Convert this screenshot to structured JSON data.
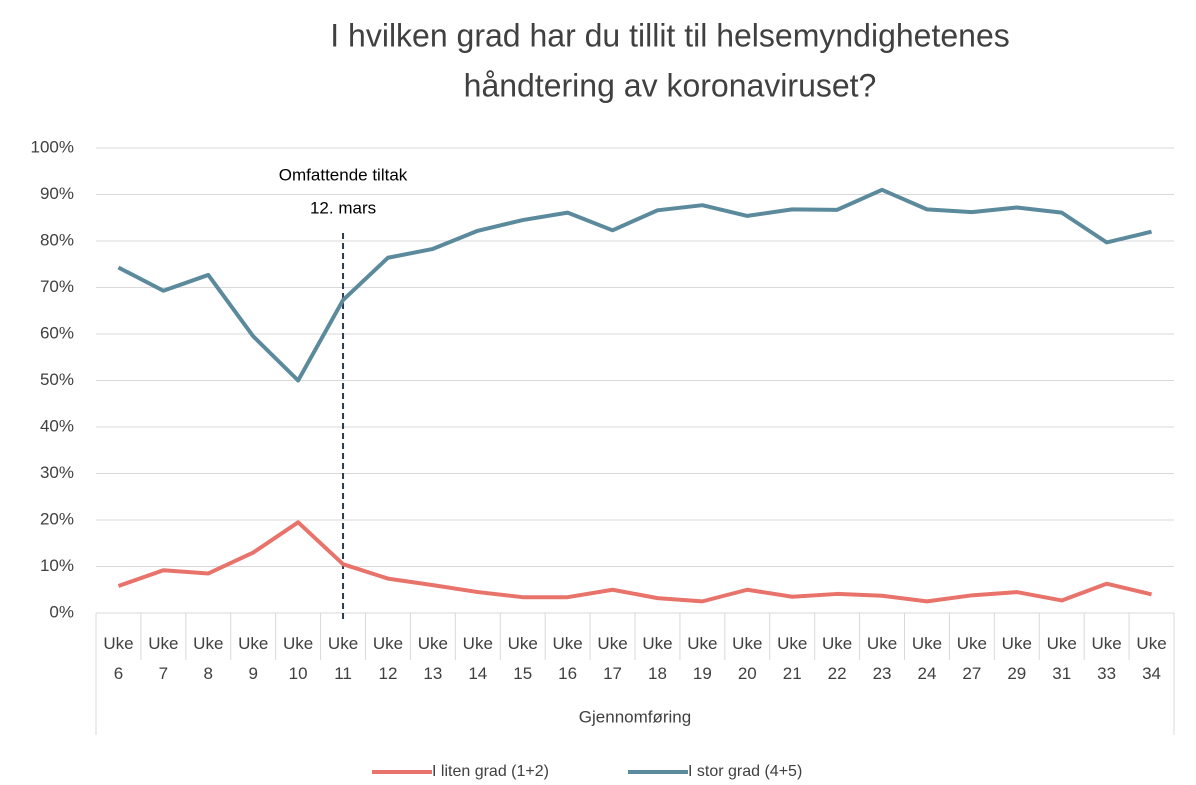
{
  "chart_data": {
    "type": "line",
    "title": [
      "I hvilken grad har du tillit til helsemyndighetenes",
      "håndtering av koronaviruset?"
    ],
    "categories": [
      "Uke 6",
      "Uke 7",
      "Uke 8",
      "Uke 9",
      "Uke 10",
      "Uke 11",
      "Uke 12",
      "Uke 13",
      "Uke 14",
      "Uke 15",
      "Uke 16",
      "Uke 17",
      "Uke 18",
      "Uke 19",
      "Uke 20",
      "Uke 21",
      "Uke 22",
      "Uke 23",
      "Uke 24",
      "Uke 27",
      "Uke 29",
      "Uke 31",
      "Uke 33",
      "Uke 34"
    ],
    "series": [
      {
        "name": "I liten grad (1+2)",
        "color": "#e8736a",
        "values": [
          5.8,
          9.2,
          8.5,
          13,
          19.5,
          10.5,
          7.4,
          6,
          4.5,
          3.4,
          3.4,
          5,
          3.2,
          2.5,
          5,
          3.5,
          4.1,
          3.7,
          2.5,
          3.8,
          4.5,
          2.7,
          6.3,
          4
        ]
      },
      {
        "name": "I stor grad (4+5)",
        "color": "#5b8a9c",
        "values": [
          74.3,
          69.3,
          72.7,
          59.5,
          50,
          67.3,
          76.4,
          78.3,
          82.2,
          84.5,
          86.1,
          82.3,
          86.6,
          87.7,
          85.4,
          86.8,
          86.7,
          91,
          86.8,
          86.2,
          87.2,
          86.1,
          79.7,
          82
        ]
      }
    ],
    "xlabel": "Gjennomføring",
    "annotation": [
      "Omfattende tiltak",
      "12. mars"
    ],
    "ylim": [
      0,
      100
    ],
    "yticks": [
      {
        "value": 0,
        "label": "0%"
      },
      {
        "value": 10,
        "label": "10%"
      },
      {
        "value": 20,
        "label": "20%"
      },
      {
        "value": 30,
        "label": "30%"
      },
      {
        "value": 40,
        "label": "40%"
      },
      {
        "value": 50,
        "label": "50%"
      },
      {
        "value": 60,
        "label": "60%"
      },
      {
        "value": 70,
        "label": "70%"
      },
      {
        "value": 80,
        "label": "80%"
      },
      {
        "value": 90,
        "label": "90%"
      },
      {
        "value": 100,
        "label": "100%"
      }
    ],
    "grid": true,
    "legend": "bottom"
  }
}
